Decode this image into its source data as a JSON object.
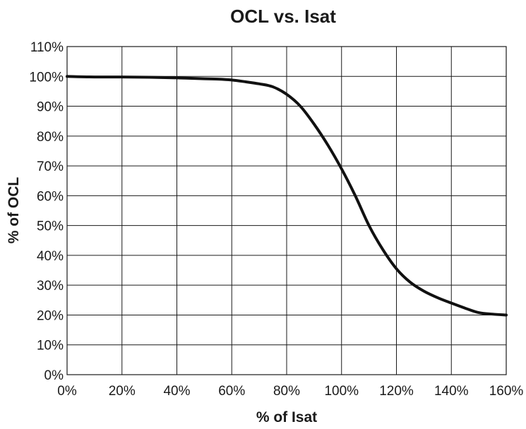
{
  "chart_data": {
    "type": "line",
    "title": "OCL vs. Isat",
    "xlabel": "% of Isat",
    "ylabel": "% of OCL",
    "xlim": [
      0,
      160
    ],
    "ylim": [
      0,
      110
    ],
    "x_ticks": [
      "0%",
      "20%",
      "40%",
      "60%",
      "80%",
      "100%",
      "120%",
      "140%",
      "160%"
    ],
    "y_ticks": [
      "0%",
      "10%",
      "20%",
      "30%",
      "40%",
      "50%",
      "60%",
      "70%",
      "80%",
      "90%",
      "100%",
      "110%"
    ],
    "grid": true,
    "series": [
      {
        "x": [
          0,
          10,
          20,
          30,
          40,
          50,
          55,
          60,
          65,
          70,
          75,
          80,
          85,
          90,
          95,
          100,
          105,
          110,
          115,
          120,
          125,
          130,
          135,
          140,
          145,
          150,
          155,
          160
        ],
        "y": [
          100,
          99.8,
          99.8,
          99.7,
          99.5,
          99.2,
          99.1,
          98.8,
          98.2,
          97.5,
          96.5,
          94,
          90,
          84,
          77,
          69,
          60,
          50,
          42,
          35.5,
          31,
          28,
          25.8,
          24,
          22.3,
          20.8,
          20.3,
          20
        ]
      }
    ],
    "colors": {
      "line": "#111111",
      "grid": "#1a1a1a"
    }
  }
}
